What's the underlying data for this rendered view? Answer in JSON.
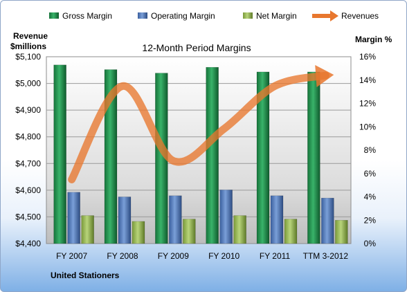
{
  "chart_data": {
    "type": "bar",
    "title": "12-Month Period Margins",
    "company": "United Stationers",
    "categories": [
      "FY 2007",
      "FY 2008",
      "FY 2009",
      "FY 2010",
      "FY 2011",
      "TTM 3-2012"
    ],
    "series": [
      {
        "name": "Gross Margin",
        "axis": "right",
        "color": "#1e8a45",
        "values": [
          15.3,
          14.9,
          14.6,
          15.1,
          14.7,
          14.7
        ]
      },
      {
        "name": "Operating Margin",
        "axis": "right",
        "color": "#4a72b8",
        "values": [
          4.4,
          4.0,
          4.1,
          4.6,
          4.1,
          3.9
        ]
      },
      {
        "name": "Net Margin",
        "axis": "right",
        "color": "#8db04a",
        "values": [
          2.4,
          1.9,
          2.1,
          2.4,
          2.1,
          2.0
        ]
      },
      {
        "name": "Revenues",
        "type": "line",
        "axis": "left",
        "color": "#e8772e",
        "values": [
          4640,
          4990,
          4710,
          4830,
          4990,
          5030
        ]
      }
    ],
    "left_axis": {
      "label_line1": "Revenue",
      "label_line2": "$millions",
      "range": [
        4400,
        5100
      ],
      "ticks": [
        "$4,400",
        "$4,500",
        "$4,600",
        "$4,700",
        "$4,800",
        "$4,900",
        "$5,000",
        "$5,100"
      ]
    },
    "right_axis": {
      "label": "Margin %",
      "range": [
        0,
        16
      ],
      "ticks": [
        "0%",
        "2%",
        "4%",
        "6%",
        "8%",
        "10%",
        "12%",
        "14%",
        "16%"
      ]
    },
    "grid": true,
    "legend_position": "top"
  }
}
